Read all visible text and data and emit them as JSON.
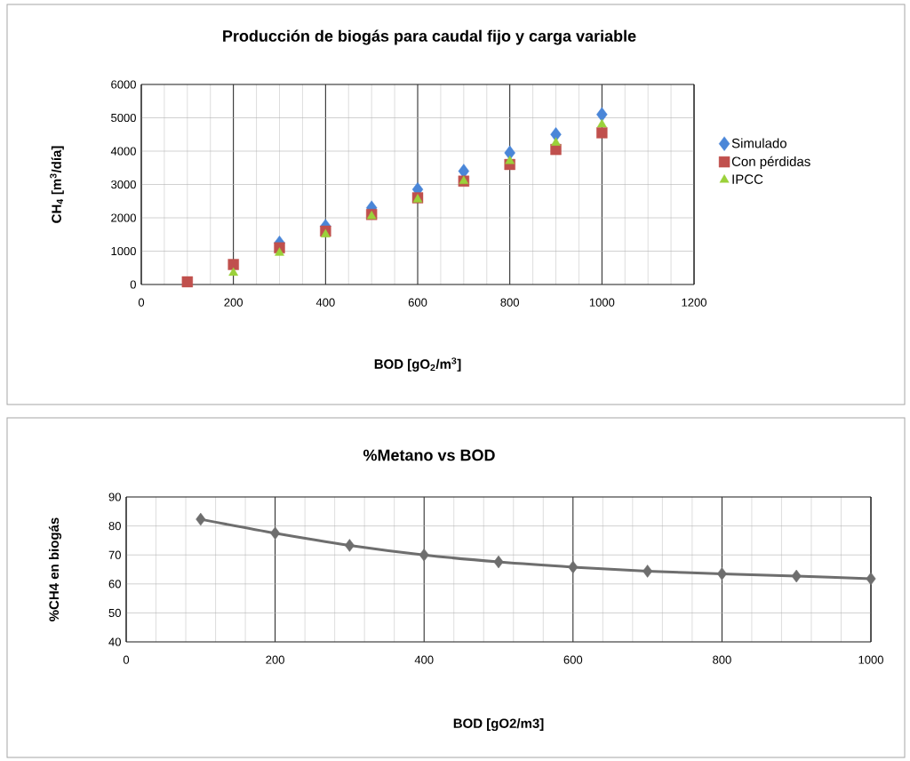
{
  "chart_data": [
    {
      "type": "scatter",
      "title": "Producción de biogás para caudal fijo y carga variable",
      "xlabel": "BOD [gO$_{2}$/m$^{3}$]",
      "ylabel": "CH$_{4}$ [m$^{3}$/día]",
      "x": [
        100,
        200,
        300,
        400,
        500,
        600,
        700,
        800,
        900,
        1000
      ],
      "series": [
        {
          "name": "Simulado",
          "color": "#4a86d8",
          "marker": "diamond",
          "values": [
            null,
            null,
            1250,
            1750,
            2300,
            2850,
            3400,
            3950,
            4500,
            5100
          ]
        },
        {
          "name": "Con pérdidas",
          "color": "#c0504d",
          "marker": "square",
          "values": [
            80,
            600,
            1100,
            1600,
            2100,
            2600,
            3100,
            3600,
            4050,
            4550
          ]
        },
        {
          "name": "IPCC",
          "color": "#9bd13a",
          "marker": "triangle",
          "values": [
            null,
            350,
            950,
            1500,
            2050,
            2550,
            3100,
            3700,
            4250,
            4800
          ]
        }
      ],
      "xlim": [
        0,
        1200
      ],
      "xticks": [
        0,
        200,
        400,
        600,
        800,
        1000,
        1200
      ],
      "ylim": [
        0,
        6000
      ],
      "yticks": [
        0,
        1000,
        2000,
        3000,
        4000,
        5000,
        6000
      ],
      "grid": true,
      "legend": "right"
    },
    {
      "type": "line",
      "title": "%Metano vs BOD",
      "xlabel": "BOD [gO2/m3]",
      "ylabel": "%CH4 en biogás",
      "x": [
        100,
        200,
        300,
        400,
        500,
        600,
        700,
        800,
        900,
        1000
      ],
      "series": [
        {
          "color": "#6e6e6e",
          "values": [
            82.3,
            77.5,
            73.3,
            70.0,
            67.6,
            65.8,
            64.4,
            63.5,
            62.7,
            61.8
          ]
        }
      ],
      "xlim": [
        0,
        1000
      ],
      "xticks": [
        0,
        200,
        400,
        600,
        800,
        1000
      ],
      "ylim": [
        40,
        90
      ],
      "yticks": [
        40,
        50,
        60,
        70,
        80,
        90
      ],
      "grid": true,
      "marker": "diamond",
      "legend": false
    }
  ]
}
